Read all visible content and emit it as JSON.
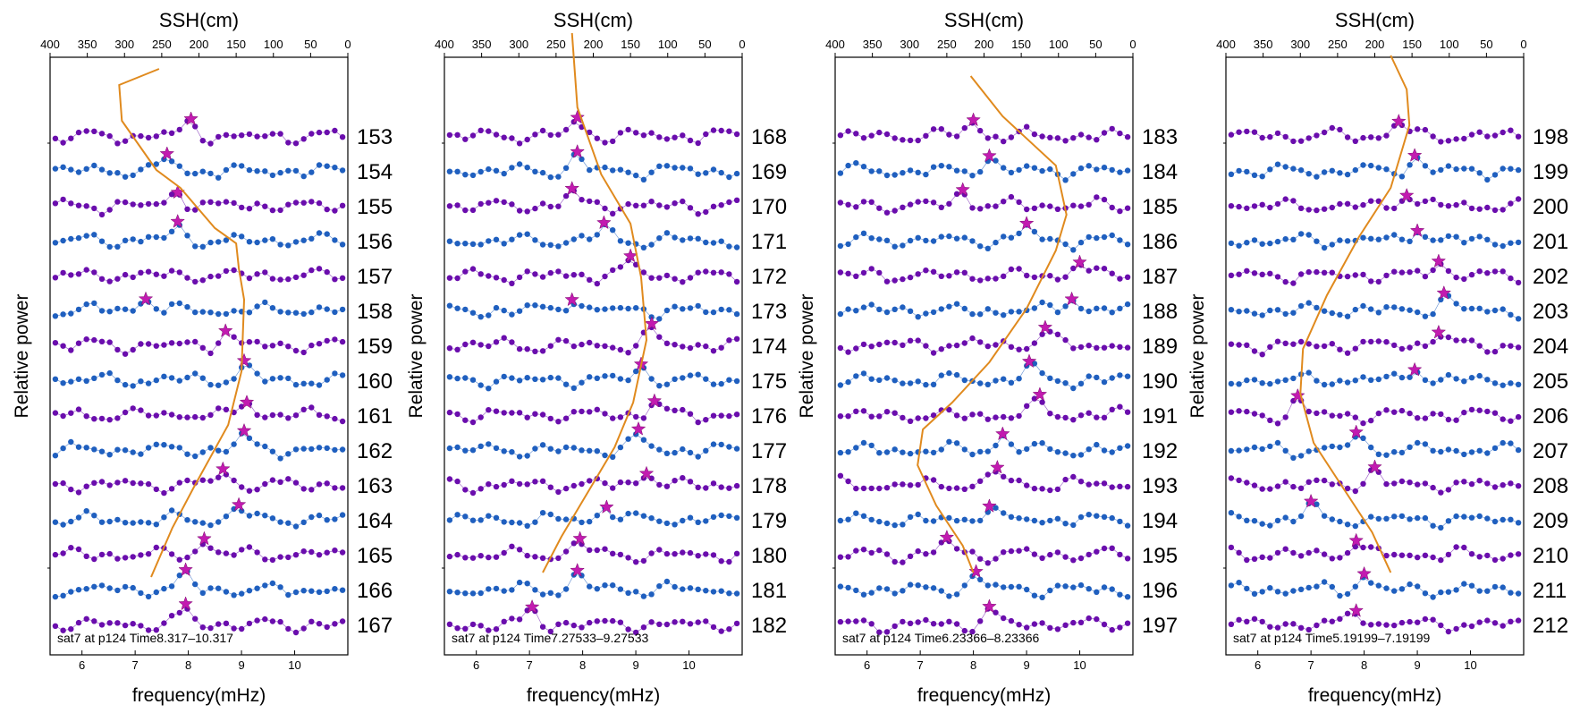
{
  "chart_data": [
    {
      "type": "line",
      "top_axis_label": "SSH(cm)",
      "top_ticks": [
        400,
        350,
        300,
        250,
        200,
        150,
        100,
        50,
        0
      ],
      "xlabel": "frequency(mHz)",
      "ylabel": "Relative power",
      "x_ticks": [
        6,
        7,
        8,
        9,
        10
      ],
      "xlim": [
        5.4,
        11.0
      ],
      "row_labels": [
        "153",
        "154",
        "155",
        "156",
        "157",
        "158",
        "159",
        "160",
        "161",
        "162",
        "163",
        "164",
        "165",
        "166",
        "167"
      ],
      "annotation": "sat7 at p124 Time8.317–10.317",
      "peak_x": [
        8.05,
        7.6,
        7.8,
        7.8,
        null,
        7.2,
        8.7,
        9.05,
        9.1,
        9.05,
        8.65,
        8.95,
        8.3,
        7.95,
        7.95
      ],
      "ssh_curve": [
        [
          7.45,
          77
        ],
        [
          6.7,
          95
        ],
        [
          6.75,
          135
        ],
        [
          7.4,
          190
        ],
        [
          7.85,
          210
        ],
        [
          8.5,
          255
        ],
        [
          8.9,
          272
        ],
        [
          8.95,
          300
        ],
        [
          9.05,
          335
        ],
        [
          9.0,
          415
        ],
        [
          8.75,
          475
        ],
        [
          8.1,
          545
        ],
        [
          7.7,
          590
        ],
        [
          7.3,
          645
        ]
      ]
    },
    {
      "type": "line",
      "top_axis_label": "SSH(cm)",
      "top_ticks": [
        400,
        350,
        300,
        250,
        200,
        150,
        100,
        50,
        0
      ],
      "xlabel": "frequency(mHz)",
      "ylabel": "Relative power",
      "x_ticks": [
        6,
        7,
        8,
        9,
        10
      ],
      "xlim": [
        5.4,
        11.0
      ],
      "row_labels": [
        "168",
        "169",
        "170",
        "171",
        "172",
        "173",
        "174",
        "175",
        "176",
        "177",
        "178",
        "179",
        "180",
        "181",
        "182"
      ],
      "annotation": "sat7 at p124 Time7.27533–9.27533",
      "peak_x": [
        7.9,
        7.9,
        7.8,
        8.4,
        8.9,
        7.8,
        9.3,
        9.1,
        9.35,
        9.05,
        9.2,
        8.45,
        7.95,
        7.9,
        7.05
      ],
      "ssh_curve": [
        [
          7.8,
          37
        ],
        [
          7.9,
          120
        ],
        [
          8.35,
          195
        ],
        [
          8.9,
          250
        ],
        [
          9.1,
          310
        ],
        [
          9.2,
          380
        ],
        [
          8.95,
          450
        ],
        [
          8.6,
          500
        ],
        [
          8.0,
          560
        ],
        [
          7.6,
          600
        ],
        [
          7.25,
          640
        ]
      ]
    },
    {
      "type": "line",
      "top_axis_label": "SSH(cm)",
      "top_ticks": [
        400,
        350,
        300,
        250,
        200,
        150,
        100,
        50,
        0
      ],
      "xlabel": "frequency(mHz)",
      "ylabel": "Relative power",
      "x_ticks": [
        6,
        7,
        8,
        9,
        10
      ],
      "xlim": [
        5.4,
        11.0
      ],
      "row_labels": [
        "183",
        "184",
        "185",
        "186",
        "187",
        "188",
        "189",
        "190",
        "191",
        "192",
        "193",
        "194",
        "195",
        "196",
        "197"
      ],
      "annotation": "sat7 at p124 Time6.23366–8.23366",
      "peak_x": [
        8.0,
        8.3,
        7.8,
        9.0,
        10.0,
        9.85,
        9.35,
        9.05,
        9.25,
        8.55,
        8.45,
        8.3,
        7.5,
        8.05,
        8.3
      ],
      "ssh_curve": [
        [
          7.95,
          85
        ],
        [
          8.55,
          130
        ],
        [
          9.55,
          185
        ],
        [
          9.75,
          240
        ],
        [
          9.55,
          280
        ],
        [
          9.0,
          345
        ],
        [
          8.3,
          405
        ],
        [
          7.6,
          450
        ],
        [
          7.05,
          480
        ],
        [
          6.95,
          520
        ],
        [
          7.3,
          565
        ],
        [
          7.8,
          610
        ],
        [
          8.0,
          640
        ]
      ]
    },
    {
      "type": "line",
      "top_axis_label": "SSH(cm)",
      "top_ticks": [
        400,
        350,
        300,
        250,
        200,
        150,
        100,
        50,
        0
      ],
      "xlabel": "frequency(mHz)",
      "ylabel": "Relative power",
      "x_ticks": [
        6,
        7,
        8,
        9,
        10
      ],
      "xlim": [
        5.4,
        11.0
      ],
      "row_labels": [
        "198",
        "199",
        "200",
        "201",
        "202",
        "203",
        "204",
        "205",
        "206",
        "207",
        "208",
        "209",
        "210",
        "211",
        "212"
      ],
      "annotation": "sat7 at p124 Time5.19199–7.19199",
      "peak_x": [
        8.65,
        8.95,
        8.8,
        9.0,
        9.4,
        9.5,
        9.4,
        8.95,
        6.75,
        7.85,
        8.2,
        7.0,
        7.85,
        8.0,
        7.85
      ],
      "ssh_curve": [
        [
          8.5,
          62
        ],
        [
          8.8,
          100
        ],
        [
          8.85,
          140
        ],
        [
          8.5,
          210
        ],
        [
          7.9,
          265
        ],
        [
          7.3,
          330
        ],
        [
          6.85,
          390
        ],
        [
          6.8,
          440
        ],
        [
          7.05,
          495
        ],
        [
          7.6,
          545
        ],
        [
          8.15,
          595
        ],
        [
          8.5,
          640
        ]
      ]
    }
  ]
}
